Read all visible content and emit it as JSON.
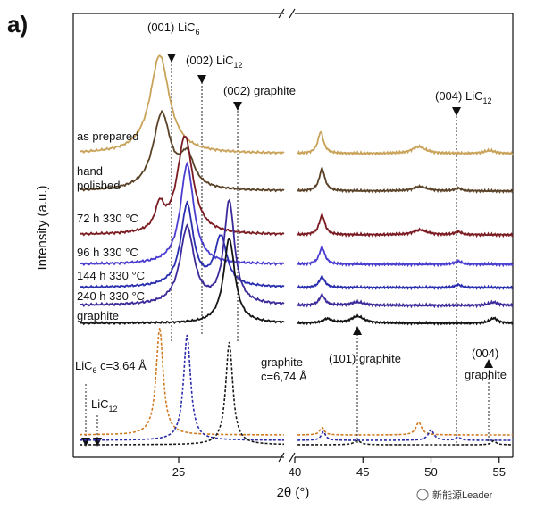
{
  "chart_data": {
    "type": "line",
    "panel_label": "a)",
    "xlabel": "2θ (°)",
    "ylabel": "Intensity (a.u.)",
    "x_break": true,
    "x_segments": [
      {
        "xlim": [
          20,
          30
        ],
        "ticks": [
          25
        ]
      },
      {
        "xlim": [
          40,
          56
        ],
        "ticks": [
          40,
          45,
          50,
          55
        ]
      }
    ],
    "y_ticks": "none",
    "series": [
      {
        "name": "as prepared",
        "color": "#c9a35a",
        "peaks": [
          [
            24.1,
            1.0,
            0.55
          ],
          [
            41.9,
            0.22,
            0.25
          ],
          [
            49.1,
            0.07,
            0.6
          ],
          [
            54.3,
            0.03,
            0.5
          ]
        ]
      },
      {
        "name": "hand polished",
        "color": "#5a4328",
        "peaks": [
          [
            24.2,
            0.85,
            0.5
          ],
          [
            25.4,
            0.35,
            0.4
          ],
          [
            42.0,
            0.25,
            0.25
          ],
          [
            49.2,
            0.05,
            0.6
          ],
          [
            52.0,
            0.03,
            0.3
          ]
        ]
      },
      {
        "name": "72 h 330 °C",
        "color": "#7a1c22",
        "peaks": [
          [
            24.1,
            0.25,
            0.25
          ],
          [
            25.3,
            1.0,
            0.45
          ],
          [
            42.0,
            0.2,
            0.25
          ],
          [
            49.2,
            0.05,
            0.6
          ],
          [
            52.0,
            0.03,
            0.3
          ]
        ]
      },
      {
        "name": "96 h 330 °C",
        "color": "#4b3dd0",
        "peaks": [
          [
            25.4,
            1.0,
            0.38
          ],
          [
            42.0,
            0.17,
            0.25
          ],
          [
            52.0,
            0.03,
            0.3
          ]
        ]
      },
      {
        "name": "144 h 330 °C",
        "color": "#2a2fb0",
        "peaks": [
          [
            25.4,
            0.92,
            0.36
          ],
          [
            27.0,
            0.55,
            0.35
          ],
          [
            42.0,
            0.12,
            0.25
          ],
          [
            52.0,
            0.03,
            0.3
          ]
        ]
      },
      {
        "name": "240 h 330 °C",
        "color": "#3b2a9a",
        "peaks": [
          [
            25.4,
            0.75,
            0.4
          ],
          [
            27.4,
            1.0,
            0.3
          ],
          [
            42.0,
            0.1,
            0.25
          ],
          [
            44.6,
            0.03,
            0.6
          ],
          [
            54.6,
            0.03,
            0.4
          ]
        ]
      },
      {
        "name": "graphite",
        "color": "#151515",
        "peaks": [
          [
            27.4,
            1.0,
            0.32
          ],
          [
            42.4,
            0.05,
            0.4
          ],
          [
            44.6,
            0.08,
            0.6
          ],
          [
            54.6,
            0.06,
            0.35
          ]
        ]
      }
    ],
    "reference_series": [
      {
        "name": "LiC6",
        "color": "#d07a20",
        "peaks": [
          [
            24.1,
            1.0,
            0.2
          ],
          [
            42.0,
            0.07,
            0.2
          ],
          [
            49.1,
            0.12,
            0.25
          ]
        ]
      },
      {
        "name": "LiC12",
        "color": "#2a2aa8",
        "peaks": [
          [
            25.4,
            1.0,
            0.2
          ],
          [
            42.1,
            0.08,
            0.2
          ],
          [
            50.0,
            0.1,
            0.25
          ],
          [
            52.0,
            0.03,
            0.2
          ]
        ]
      },
      {
        "name": "graphite",
        "color": "#1a1a1a",
        "peaks": [
          [
            27.4,
            1.0,
            0.2
          ],
          [
            44.6,
            0.04,
            0.3
          ],
          [
            54.6,
            0.04,
            0.2
          ]
        ]
      }
    ],
    "annotations": {
      "lic6_001": "(001) LiC",
      "lic6_001_sub": "6",
      "lic12_002": "(002) LiC",
      "lic12_002_sub": "12",
      "graphite_002": "(002) graphite",
      "lic12_004": "(004) LiC",
      "lic12_004_sub": "12",
      "graphite_101": "(101) graphite",
      "graphite_004_a": "(004)",
      "graphite_004_b": "graphite",
      "lic6_ref": "LiC",
      "lic6_ref_sub": "6",
      "lic6_ref_c": " c=3,64 Å",
      "lic12_ref": "LiC",
      "lic12_ref_sub": "12",
      "graphite_ref_a": "graphite",
      "graphite_ref_b": "c=6,74 Å"
    },
    "series_labels": [
      "as prepared",
      "hand",
      "polished",
      "72 h 330 °C",
      "96 h 330 °C",
      "144 h 330 °C",
      "240 h 330 °C",
      "graphite"
    ],
    "watermark": "新能源Leader",
    "colors": {
      "axis": "#111111",
      "dashed_marker": "#222222"
    }
  }
}
